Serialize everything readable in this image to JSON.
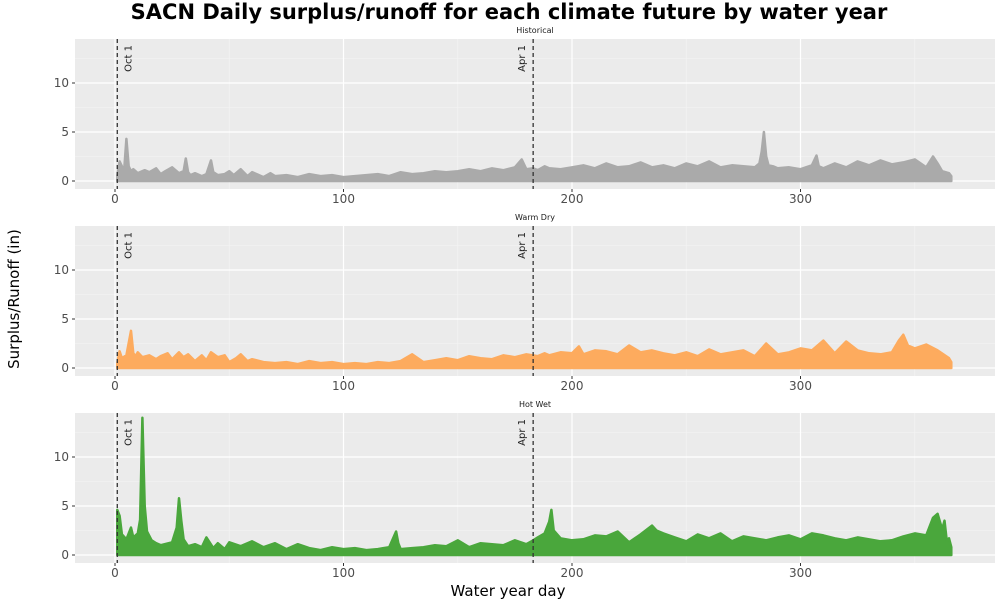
{
  "chart_data": {
    "type": "area",
    "title": "SACN Daily surplus/runoff for each climate future by water year",
    "xlabel": "Water year day",
    "ylabel": "Surplus/Runoff (in)",
    "xlim": [
      1,
      366
    ],
    "ylim": [
      0,
      14
    ],
    "x_ticks": [
      0,
      100,
      200,
      300
    ],
    "y_ticks": [
      0,
      5,
      10
    ],
    "grid": true,
    "annotations": [
      {
        "x": 1,
        "label": "Oct 1"
      },
      {
        "x": 183,
        "label": "Apr 1"
      }
    ],
    "panels": [
      {
        "name": "Historical",
        "color": "#aaaaaa",
        "x": [
          1,
          2,
          3,
          4,
          5,
          6,
          7,
          8,
          10,
          13,
          15,
          18,
          20,
          22,
          25,
          28,
          30,
          31,
          32,
          33,
          35,
          38,
          40,
          42,
          43,
          45,
          48,
          50,
          52,
          55,
          58,
          60,
          62,
          65,
          68,
          70,
          75,
          80,
          85,
          90,
          95,
          100,
          105,
          110,
          115,
          120,
          125,
          130,
          135,
          140,
          145,
          150,
          155,
          160,
          165,
          170,
          175,
          178,
          180,
          183,
          185,
          188,
          190,
          195,
          200,
          205,
          210,
          215,
          220,
          225,
          230,
          235,
          240,
          245,
          250,
          255,
          260,
          265,
          270,
          275,
          280,
          282,
          283,
          284,
          285,
          286,
          288,
          290,
          295,
          300,
          305,
          307,
          308,
          310,
          315,
          320,
          325,
          330,
          335,
          340,
          345,
          350,
          355,
          358,
          360,
          362,
          365,
          366
        ],
        "y": [
          0.5,
          2.0,
          1.5,
          1.0,
          4.3,
          1.5,
          1.0,
          1.2,
          0.8,
          1.1,
          0.9,
          1.3,
          0.7,
          1.0,
          1.4,
          0.8,
          1.0,
          2.3,
          0.9,
          0.6,
          0.8,
          0.5,
          0.7,
          2.1,
          0.9,
          0.6,
          0.7,
          1.0,
          0.6,
          1.2,
          0.5,
          0.9,
          0.7,
          0.4,
          0.8,
          0.5,
          0.6,
          0.4,
          0.7,
          0.5,
          0.6,
          0.4,
          0.5,
          0.6,
          0.7,
          0.5,
          0.9,
          0.7,
          0.8,
          1.0,
          0.9,
          1.0,
          1.2,
          1.0,
          1.3,
          1.1,
          1.4,
          2.2,
          1.2,
          1.3,
          1.1,
          1.5,
          1.3,
          1.2,
          1.4,
          1.6,
          1.3,
          1.8,
          1.4,
          1.5,
          1.9,
          1.4,
          1.6,
          1.3,
          1.8,
          1.5,
          2.0,
          1.4,
          1.6,
          1.5,
          1.4,
          1.8,
          3.0,
          5.0,
          2.5,
          1.6,
          1.5,
          1.3,
          1.4,
          1.2,
          1.6,
          2.6,
          1.5,
          1.3,
          1.8,
          1.4,
          2.0,
          1.6,
          2.1,
          1.7,
          1.9,
          2.2,
          1.4,
          2.5,
          1.8,
          1.0,
          0.8,
          0.5
        ]
      },
      {
        "name": "Warm Dry",
        "color": "#fdab5e",
        "x": [
          1,
          2,
          3,
          5,
          7,
          8,
          9,
          10,
          12,
          15,
          18,
          20,
          23,
          25,
          28,
          30,
          32,
          35,
          38,
          40,
          42,
          45,
          48,
          50,
          53,
          55,
          58,
          60,
          65,
          70,
          75,
          80,
          85,
          90,
          95,
          100,
          105,
          110,
          115,
          120,
          125,
          130,
          135,
          140,
          145,
          150,
          155,
          160,
          165,
          170,
          175,
          180,
          183,
          185,
          188,
          190,
          195,
          200,
          203,
          205,
          210,
          215,
          220,
          225,
          230,
          235,
          240,
          245,
          250,
          255,
          260,
          265,
          270,
          275,
          280,
          285,
          290,
          295,
          300,
          305,
          310,
          315,
          320,
          325,
          330,
          335,
          340,
          343,
          345,
          347,
          350,
          355,
          360,
          365,
          366
        ],
        "y": [
          0.5,
          1.7,
          1.0,
          1.3,
          3.8,
          1.5,
          1.2,
          1.6,
          1.1,
          1.3,
          0.9,
          1.2,
          1.5,
          0.9,
          1.6,
          1.1,
          1.4,
          0.7,
          1.3,
          0.8,
          1.6,
          1.1,
          1.3,
          0.6,
          1.0,
          1.4,
          0.7,
          0.9,
          0.6,
          0.5,
          0.6,
          0.4,
          0.7,
          0.5,
          0.6,
          0.4,
          0.5,
          0.4,
          0.6,
          0.5,
          0.7,
          1.4,
          0.6,
          0.8,
          1.0,
          0.8,
          1.2,
          1.0,
          0.9,
          1.3,
          1.1,
          1.4,
          1.3,
          1.2,
          1.5,
          1.3,
          1.6,
          1.5,
          2.2,
          1.4,
          1.8,
          1.7,
          1.4,
          2.3,
          1.6,
          1.8,
          1.5,
          1.3,
          1.6,
          1.2,
          1.9,
          1.4,
          1.6,
          1.8,
          1.2,
          2.5,
          1.4,
          1.6,
          2.0,
          1.8,
          2.8,
          1.5,
          2.7,
          1.8,
          1.5,
          1.4,
          1.6,
          2.8,
          3.4,
          2.3,
          2.0,
          2.4,
          1.8,
          1.0,
          0.6
        ]
      },
      {
        "name": "Hot Wet",
        "color": "#4aa73c",
        "x": [
          1,
          2,
          3,
          5,
          7,
          8,
          10,
          11,
          12,
          13,
          14,
          16,
          18,
          20,
          25,
          27,
          28,
          29,
          30,
          32,
          35,
          38,
          40,
          43,
          45,
          48,
          50,
          55,
          60,
          65,
          70,
          75,
          80,
          85,
          90,
          95,
          100,
          105,
          110,
          115,
          120,
          123,
          124,
          125,
          130,
          135,
          140,
          145,
          150,
          155,
          160,
          165,
          170,
          175,
          180,
          183,
          185,
          188,
          190,
          191,
          192,
          195,
          200,
          205,
          210,
          215,
          220,
          225,
          230,
          235,
          237,
          240,
          245,
          250,
          255,
          260,
          265,
          270,
          275,
          280,
          285,
          290,
          295,
          300,
          305,
          310,
          315,
          320,
          325,
          330,
          335,
          340,
          345,
          350,
          355,
          358,
          360,
          362,
          363,
          364,
          365,
          366
        ],
        "y": [
          4.6,
          4.0,
          2.1,
          1.6,
          2.8,
          1.8,
          2.2,
          3.6,
          14.0,
          5.0,
          2.4,
          1.5,
          1.2,
          1.0,
          1.3,
          2.8,
          5.8,
          3.5,
          1.6,
          0.9,
          1.1,
          0.8,
          1.8,
          0.7,
          1.2,
          0.6,
          1.3,
          0.9,
          1.4,
          0.8,
          1.2,
          0.6,
          1.1,
          0.7,
          0.5,
          0.8,
          0.6,
          0.7,
          0.5,
          0.6,
          0.8,
          2.4,
          1.2,
          0.6,
          0.7,
          0.8,
          1.0,
          0.9,
          1.5,
          0.8,
          1.2,
          1.1,
          1.0,
          1.5,
          1.1,
          1.5,
          1.8,
          2.2,
          3.4,
          4.6,
          2.5,
          1.7,
          1.5,
          1.6,
          2.0,
          1.9,
          2.4,
          1.3,
          2.1,
          3.0,
          2.5,
          2.2,
          1.8,
          1.4,
          2.1,
          1.7,
          2.2,
          1.4,
          1.9,
          1.7,
          1.5,
          1.8,
          2.0,
          1.6,
          2.2,
          2.0,
          1.7,
          1.5,
          1.8,
          1.6,
          1.4,
          1.5,
          1.9,
          2.2,
          2.0,
          3.8,
          4.2,
          2.6,
          3.5,
          1.5,
          1.7,
          0.8
        ]
      }
    ]
  }
}
